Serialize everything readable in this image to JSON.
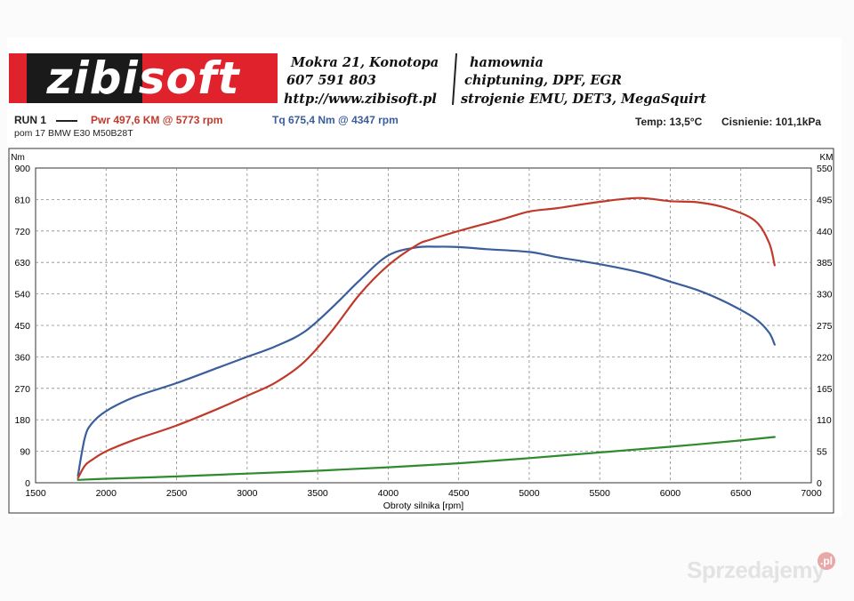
{
  "logo": {
    "text": "zibisoft"
  },
  "header": {
    "address": "Mokra 21, Konotopa",
    "phone": "607 591 803",
    "website": "http://www.zibisoft.pl",
    "service_1": "hamownia",
    "service_2": "chiptuning, DPF, EGR",
    "service_3": "strojenie EMU, DET3, MegaSquirt"
  },
  "run": {
    "label": "RUN 1",
    "power_text": "Pwr  497,6 KM @ 5773 rpm",
    "torque_text": "Tq 675,4 Nm @ 4347 rpm",
    "subtitle": "pom 17 BMW E30 M50B28T",
    "temp": "Temp: 13,5°C",
    "pressure": "Cisnienie: 101,1kPa"
  },
  "colors": {
    "power": "#c0392b",
    "torque": "#3a5d9c",
    "loss": "#2e8b2e",
    "logo_red": "#e0222c"
  },
  "watermark": {
    "text": "Sprzedajemy",
    "badge": ".pl"
  },
  "chart_data": {
    "type": "line",
    "xlabel": "Obroty silnika [rpm]",
    "ylabel_left": "Nm",
    "ylabel_right": "KM",
    "xlim": [
      1500,
      7000
    ],
    "ylim_left": [
      0,
      900
    ],
    "ylim_right": [
      0,
      550
    ],
    "x_ticks": [
      1500,
      2000,
      2500,
      3000,
      3500,
      4000,
      4500,
      5000,
      5500,
      6000,
      6500,
      7000
    ],
    "y_left_ticks": [
      0,
      90,
      180,
      270,
      360,
      450,
      540,
      630,
      720,
      810,
      900
    ],
    "y_right_ticks": [
      0,
      55,
      110,
      165,
      220,
      275,
      330,
      385,
      440,
      495,
      550
    ],
    "grid": true,
    "series": [
      {
        "name": "Tq",
        "axis": "left",
        "x": [
          1800,
          1850,
          1900,
          2000,
          2200,
          2500,
          2800,
          3000,
          3200,
          3400,
          3600,
          3800,
          4000,
          4200,
          4347,
          4500,
          4700,
          5000,
          5200,
          5500,
          5800,
          6000,
          6200,
          6400,
          6600,
          6700,
          6740
        ],
        "y": [
          20,
          130,
          170,
          205,
          245,
          285,
          330,
          360,
          390,
          430,
          500,
          580,
          650,
          673,
          675,
          674,
          668,
          660,
          645,
          625,
          600,
          575,
          550,
          515,
          470,
          430,
          395
        ]
      },
      {
        "name": "Pwr",
        "axis": "right",
        "x": [
          1800,
          1850,
          1900,
          2000,
          2200,
          2500,
          2800,
          3000,
          3200,
          3400,
          3600,
          3800,
          4000,
          4200,
          4300,
          4500,
          4800,
          5000,
          5200,
          5500,
          5773,
          6000,
          6200,
          6400,
          6600,
          6700,
          6740
        ],
        "y": [
          8,
          30,
          40,
          55,
          75,
          100,
          130,
          152,
          175,
          210,
          265,
          330,
          380,
          415,
          425,
          440,
          460,
          474,
          480,
          491,
          497.6,
          492,
          490,
          480,
          458,
          420,
          380
        ]
      },
      {
        "name": "",
        "axis": "right",
        "x": [
          1800,
          2000,
          2500,
          3000,
          3500,
          4000,
          4500,
          5000,
          5500,
          6000,
          6500,
          6740
        ],
        "y": [
          5,
          7,
          11,
          16,
          21,
          27,
          34,
          43,
          53,
          63,
          74,
          80
        ]
      }
    ]
  }
}
